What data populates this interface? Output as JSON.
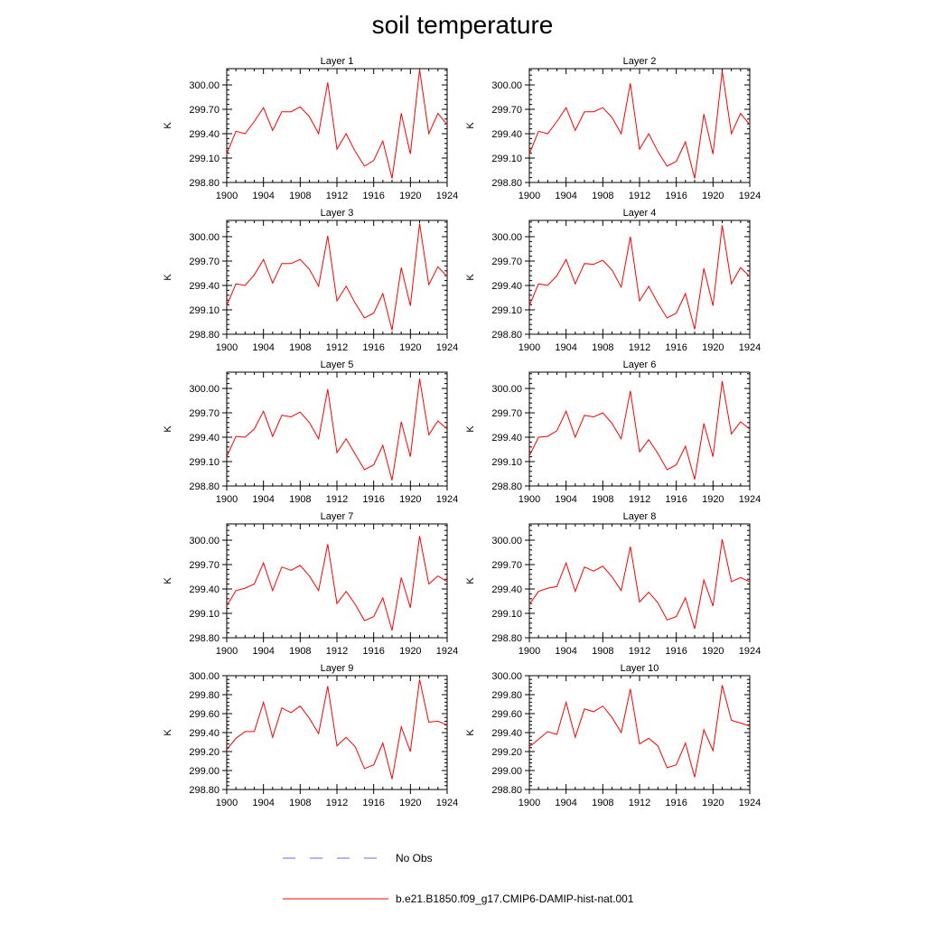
{
  "title": "soil temperature",
  "legend": [
    {
      "label": "No Obs",
      "color": "#6a6ae0",
      "dash": "dashed"
    },
    {
      "label": "b.e21.B1850.f09_g17.CMIP6-DAMIP-hist-nat.001",
      "color": "#ff0000",
      "dash": "solid"
    }
  ],
  "chart_data": [
    {
      "type": "line",
      "title": "Layer 1",
      "ylabel": "K",
      "xlim": [
        1900,
        1924
      ],
      "ylim": [
        298.8,
        300.2
      ],
      "xticks": [
        "1900",
        "1904",
        "1908",
        "1912",
        "1916",
        "1920",
        "1924"
      ],
      "yticks": [
        "298.80",
        "299.10",
        "299.40",
        "299.70",
        "300.00"
      ],
      "series": [
        {
          "color": "#ff0000",
          "x": [
            1900,
            1901,
            1902,
            1903,
            1904,
            1905,
            1906,
            1907,
            1908,
            1909,
            1910,
            1911,
            1912,
            1913,
            1914,
            1915,
            1916,
            1917,
            1918,
            1919,
            1920,
            1921,
            1922,
            1923,
            1924
          ],
          "values": [
            299.15,
            299.43,
            299.4,
            299.55,
            299.72,
            299.44,
            299.67,
            299.67,
            299.73,
            299.61,
            299.4,
            300.03,
            299.21,
            299.4,
            299.18,
            299.0,
            299.07,
            299.31,
            298.85,
            299.65,
            299.15,
            300.19,
            299.4,
            299.65,
            299.51
          ]
        }
      ]
    },
    {
      "type": "line",
      "title": "Layer 2",
      "ylabel": "K",
      "xlim": [
        1900,
        1924
      ],
      "ylim": [
        298.8,
        300.2
      ],
      "xticks": [
        "1900",
        "1904",
        "1908",
        "1912",
        "1916",
        "1920",
        "1924"
      ],
      "yticks": [
        "298.80",
        "299.10",
        "299.40",
        "299.70",
        "300.00"
      ],
      "series": [
        {
          "color": "#ff0000",
          "x": [
            1900,
            1901,
            1902,
            1903,
            1904,
            1905,
            1906,
            1907,
            1908,
            1909,
            1910,
            1911,
            1912,
            1913,
            1914,
            1915,
            1916,
            1917,
            1918,
            1919,
            1920,
            1921,
            1922,
            1923,
            1924
          ],
          "values": [
            299.15,
            299.43,
            299.4,
            299.55,
            299.72,
            299.44,
            299.67,
            299.67,
            299.72,
            299.6,
            299.4,
            300.02,
            299.21,
            299.4,
            299.18,
            299.0,
            299.06,
            299.3,
            298.85,
            299.64,
            299.15,
            300.17,
            299.4,
            299.65,
            299.51
          ]
        }
      ]
    },
    {
      "type": "line",
      "title": "Layer 3",
      "ylabel": "K",
      "xlim": [
        1900,
        1924
      ],
      "ylim": [
        298.8,
        300.2
      ],
      "xticks": [
        "1900",
        "1904",
        "1908",
        "1912",
        "1916",
        "1920",
        "1924"
      ],
      "yticks": [
        "298.80",
        "299.10",
        "299.40",
        "299.70",
        "300.00"
      ],
      "series": [
        {
          "color": "#ff0000",
          "x": [
            1900,
            1901,
            1902,
            1903,
            1904,
            1905,
            1906,
            1907,
            1908,
            1909,
            1910,
            1911,
            1912,
            1913,
            1914,
            1915,
            1916,
            1917,
            1918,
            1919,
            1920,
            1921,
            1922,
            1923,
            1924
          ],
          "values": [
            299.15,
            299.42,
            299.4,
            299.53,
            299.72,
            299.43,
            299.67,
            299.67,
            299.72,
            299.6,
            299.39,
            300.01,
            299.21,
            299.39,
            299.18,
            299.0,
            299.06,
            299.3,
            298.85,
            299.62,
            299.15,
            300.16,
            299.41,
            299.63,
            299.51
          ]
        }
      ]
    },
    {
      "type": "line",
      "title": "Layer 4",
      "ylabel": "K",
      "xlim": [
        1900,
        1924
      ],
      "ylim": [
        298.8,
        300.2
      ],
      "xticks": [
        "1900",
        "1904",
        "1908",
        "1912",
        "1916",
        "1920",
        "1924"
      ],
      "yticks": [
        "298.80",
        "299.10",
        "299.40",
        "299.70",
        "300.00"
      ],
      "series": [
        {
          "color": "#ff0000",
          "x": [
            1900,
            1901,
            1902,
            1903,
            1904,
            1905,
            1906,
            1907,
            1908,
            1909,
            1910,
            1911,
            1912,
            1913,
            1914,
            1915,
            1916,
            1917,
            1918,
            1919,
            1920,
            1921,
            1922,
            1923,
            1924
          ],
          "values": [
            299.15,
            299.42,
            299.4,
            299.52,
            299.72,
            299.42,
            299.67,
            299.66,
            299.71,
            299.59,
            299.38,
            300.0,
            299.21,
            299.39,
            299.18,
            299.0,
            299.06,
            299.3,
            298.86,
            299.61,
            299.15,
            300.14,
            299.42,
            299.62,
            299.51
          ]
        }
      ]
    },
    {
      "type": "line",
      "title": "Layer 5",
      "ylabel": "K",
      "xlim": [
        1900,
        1924
      ],
      "ylim": [
        298.8,
        300.2
      ],
      "xticks": [
        "1900",
        "1904",
        "1908",
        "1912",
        "1916",
        "1920",
        "1924"
      ],
      "yticks": [
        "298.80",
        "299.10",
        "299.40",
        "299.70",
        "300.00"
      ],
      "series": [
        {
          "color": "#ff0000",
          "x": [
            1900,
            1901,
            1902,
            1903,
            1904,
            1905,
            1906,
            1907,
            1908,
            1909,
            1910,
            1911,
            1912,
            1913,
            1914,
            1915,
            1916,
            1917,
            1918,
            1919,
            1920,
            1921,
            1922,
            1923,
            1924
          ],
          "values": [
            299.16,
            299.41,
            299.4,
            299.5,
            299.72,
            299.41,
            299.67,
            299.65,
            299.71,
            299.58,
            299.38,
            299.99,
            299.21,
            299.38,
            299.19,
            299.0,
            299.06,
            299.3,
            298.87,
            299.59,
            299.16,
            300.12,
            299.43,
            299.6,
            299.5
          ]
        }
      ]
    },
    {
      "type": "line",
      "title": "Layer 6",
      "ylabel": "K",
      "xlim": [
        1900,
        1924
      ],
      "ylim": [
        298.8,
        300.2
      ],
      "xticks": [
        "1900",
        "1904",
        "1908",
        "1912",
        "1916",
        "1920",
        "1924"
      ],
      "yticks": [
        "298.80",
        "299.10",
        "299.40",
        "299.70",
        "300.00"
      ],
      "series": [
        {
          "color": "#ff0000",
          "x": [
            1900,
            1901,
            1902,
            1903,
            1904,
            1905,
            1906,
            1907,
            1908,
            1909,
            1910,
            1911,
            1912,
            1913,
            1914,
            1915,
            1916,
            1917,
            1918,
            1919,
            1920,
            1921,
            1922,
            1923,
            1924
          ],
          "values": [
            299.17,
            299.4,
            299.41,
            299.48,
            299.72,
            299.4,
            299.67,
            299.65,
            299.7,
            299.57,
            299.38,
            299.97,
            299.22,
            299.37,
            299.2,
            299.0,
            299.06,
            299.29,
            298.88,
            299.57,
            299.16,
            300.09,
            299.44,
            299.59,
            299.5
          ]
        }
      ]
    },
    {
      "type": "line",
      "title": "Layer 7",
      "ylabel": "K",
      "xlim": [
        1900,
        1924
      ],
      "ylim": [
        298.8,
        300.2
      ],
      "xticks": [
        "1900",
        "1904",
        "1908",
        "1912",
        "1916",
        "1920",
        "1924"
      ],
      "yticks": [
        "298.80",
        "299.10",
        "299.40",
        "299.70",
        "300.00"
      ],
      "series": [
        {
          "color": "#ff0000",
          "x": [
            1900,
            1901,
            1902,
            1903,
            1904,
            1905,
            1906,
            1907,
            1908,
            1909,
            1910,
            1911,
            1912,
            1913,
            1914,
            1915,
            1916,
            1917,
            1918,
            1919,
            1920,
            1921,
            1922,
            1923,
            1924
          ],
          "values": [
            299.19,
            299.38,
            299.41,
            299.46,
            299.72,
            299.38,
            299.67,
            299.63,
            299.69,
            299.56,
            299.38,
            299.95,
            299.22,
            299.37,
            299.21,
            299.01,
            299.06,
            299.29,
            298.89,
            299.54,
            299.17,
            300.05,
            299.46,
            299.56,
            299.49
          ]
        }
      ]
    },
    {
      "type": "line",
      "title": "Layer 8",
      "ylabel": "K",
      "xlim": [
        1900,
        1924
      ],
      "ylim": [
        298.8,
        300.2
      ],
      "xticks": [
        "1900",
        "1904",
        "1908",
        "1912",
        "1916",
        "1920",
        "1924"
      ],
      "yticks": [
        "298.80",
        "299.10",
        "299.40",
        "299.70",
        "300.00"
      ],
      "series": [
        {
          "color": "#ff0000",
          "x": [
            1900,
            1901,
            1902,
            1903,
            1904,
            1905,
            1906,
            1907,
            1908,
            1909,
            1910,
            1911,
            1912,
            1913,
            1914,
            1915,
            1916,
            1917,
            1918,
            1919,
            1920,
            1921,
            1922,
            1923,
            1924
          ],
          "values": [
            299.21,
            299.37,
            299.41,
            299.43,
            299.72,
            299.37,
            299.67,
            299.62,
            299.68,
            299.55,
            299.38,
            299.92,
            299.24,
            299.36,
            299.23,
            299.02,
            299.06,
            299.29,
            298.91,
            299.51,
            299.19,
            300.01,
            299.49,
            299.54,
            299.49
          ]
        }
      ]
    },
    {
      "type": "line",
      "title": "Layer 9",
      "ylabel": "K",
      "xlim": [
        1900,
        1924
      ],
      "ylim": [
        298.8,
        300.0
      ],
      "xticks": [
        "1900",
        "1904",
        "1908",
        "1912",
        "1916",
        "1920",
        "1924"
      ],
      "yticks": [
        "298.80",
        "299.00",
        "299.20",
        "299.40",
        "299.60",
        "299.80",
        "300.00"
      ],
      "series": [
        {
          "color": "#ff0000",
          "x": [
            1900,
            1901,
            1902,
            1903,
            1904,
            1905,
            1906,
            1907,
            1908,
            1909,
            1910,
            1911,
            1912,
            1913,
            1914,
            1915,
            1916,
            1917,
            1918,
            1919,
            1920,
            1921,
            1922,
            1923,
            1924
          ],
          "values": [
            299.22,
            299.34,
            299.41,
            299.41,
            299.72,
            299.35,
            299.66,
            299.61,
            299.68,
            299.55,
            299.39,
            299.89,
            299.26,
            299.35,
            299.25,
            299.02,
            299.06,
            299.29,
            298.91,
            299.46,
            299.2,
            299.96,
            299.51,
            299.52,
            299.48
          ]
        }
      ]
    },
    {
      "type": "line",
      "title": "Layer 10",
      "ylabel": "K",
      "xlim": [
        1900,
        1924
      ],
      "ylim": [
        298.8,
        300.0
      ],
      "xticks": [
        "1900",
        "1904",
        "1908",
        "1912",
        "1916",
        "1920",
        "1924"
      ],
      "yticks": [
        "298.80",
        "299.00",
        "299.20",
        "299.40",
        "299.60",
        "299.80",
        "300.00"
      ],
      "series": [
        {
          "color": "#ff0000",
          "x": [
            1900,
            1901,
            1902,
            1903,
            1904,
            1905,
            1906,
            1907,
            1908,
            1909,
            1910,
            1911,
            1912,
            1913,
            1914,
            1915,
            1916,
            1917,
            1918,
            1919,
            1920,
            1921,
            1922,
            1923,
            1924
          ],
          "values": [
            299.25,
            299.33,
            299.41,
            299.38,
            299.72,
            299.35,
            299.65,
            299.62,
            299.68,
            299.56,
            299.4,
            299.86,
            299.28,
            299.34,
            299.26,
            299.03,
            299.06,
            299.29,
            298.93,
            299.43,
            299.21,
            299.9,
            299.53,
            299.5,
            299.47
          ]
        }
      ]
    }
  ]
}
